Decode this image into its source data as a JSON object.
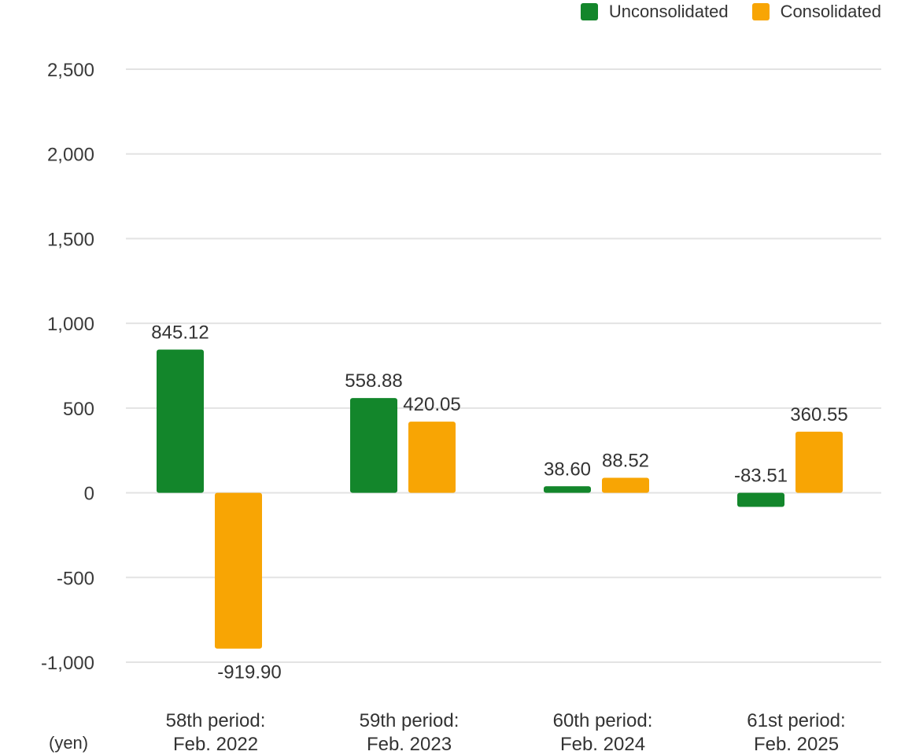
{
  "chart_data": {
    "type": "bar",
    "categories": [
      [
        "58th period:",
        "Feb. 2022"
      ],
      [
        "59th period:",
        "Feb. 2023"
      ],
      [
        "60th period:",
        "Feb. 2024"
      ],
      [
        "61st period:",
        "Feb. 2025"
      ]
    ],
    "series": [
      {
        "name": "Unconsolidated",
        "color": "#13862b",
        "values": [
          845.12,
          558.88,
          38.6,
          -83.51
        ],
        "labels": [
          "845.12",
          "558.88",
          "38.60",
          "-83.51"
        ]
      },
      {
        "name": "Consolidated",
        "color": "#f8a504",
        "values": [
          -919.9,
          420.05,
          88.52,
          360.55
        ],
        "labels": [
          "-919.90",
          "420.05",
          "88.52",
          "360.55"
        ]
      }
    ],
    "yticks": [
      2500,
      2000,
      1500,
      1000,
      500,
      0,
      -500,
      -1000
    ],
    "ytick_labels": [
      "2,500",
      "2,000",
      "1,500",
      "1,000",
      "500",
      "0",
      "-500",
      "-1,000"
    ],
    "ylim": [
      -1000,
      2500
    ],
    "unit_label": "(yen)",
    "grid": true,
    "legend_position": "top-right"
  }
}
